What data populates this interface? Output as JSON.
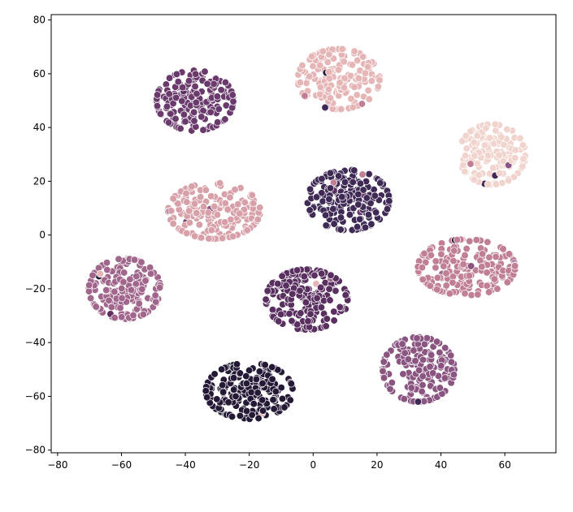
{
  "chart_data": {
    "type": "scatter",
    "title": "",
    "xlabel": "",
    "ylabel": "",
    "xlim": [
      -82,
      76
    ],
    "ylim": [
      -81,
      82
    ],
    "grid": false,
    "legend": "none",
    "x_ticks": [
      -80,
      -60,
      -40,
      -20,
      0,
      20,
      40,
      60
    ],
    "y_ticks": [
      -80,
      -60,
      -40,
      -20,
      0,
      20,
      40,
      60,
      80
    ],
    "x_tick_labels": [
      "−80",
      "−60",
      "−40",
      "−20",
      "0",
      "20",
      "40",
      "60"
    ],
    "y_tick_labels": [
      "−80",
      "−60",
      "−40",
      "−20",
      "0",
      "20",
      "40",
      "60",
      "80"
    ],
    "point_edge_color": "#ffffff",
    "clusters": [
      {
        "cx": -37,
        "cy": 50,
        "sx": 7.5,
        "sy": 7,
        "n": 190,
        "color": "#6a3a6c"
      },
      {
        "cx": 8,
        "cy": 58,
        "sx": 8,
        "sy": 7,
        "n": 170,
        "color": "#e6b6b7"
      },
      {
        "cx": 56,
        "cy": 30,
        "sx": 6.5,
        "sy": 7,
        "n": 160,
        "color": "#f0d4cd"
      },
      {
        "cx": 11,
        "cy": 13,
        "sx": 8,
        "sy": 7,
        "n": 190,
        "color": "#3e2a55"
      },
      {
        "cx": -31,
        "cy": 9,
        "sx": 9,
        "sy": 6.5,
        "n": 190,
        "color": "#d8a0a8"
      },
      {
        "cx": 48,
        "cy": -12,
        "sx": 9.5,
        "sy": 6.5,
        "n": 190,
        "color": "#c07f94"
      },
      {
        "cx": -59,
        "cy": -20,
        "sx": 7,
        "sy": 7,
        "n": 180,
        "color": "#a1668b"
      },
      {
        "cx": -2,
        "cy": -24,
        "sx": 8,
        "sy": 7,
        "n": 200,
        "color": "#582f5f"
      },
      {
        "cx": 33,
        "cy": -50,
        "sx": 7,
        "sy": 7.5,
        "n": 190,
        "color": "#8b5582"
      },
      {
        "cx": -20,
        "cy": -58,
        "sx": 8.5,
        "sy": 6.5,
        "n": 200,
        "color": "#251a36"
      }
    ]
  }
}
